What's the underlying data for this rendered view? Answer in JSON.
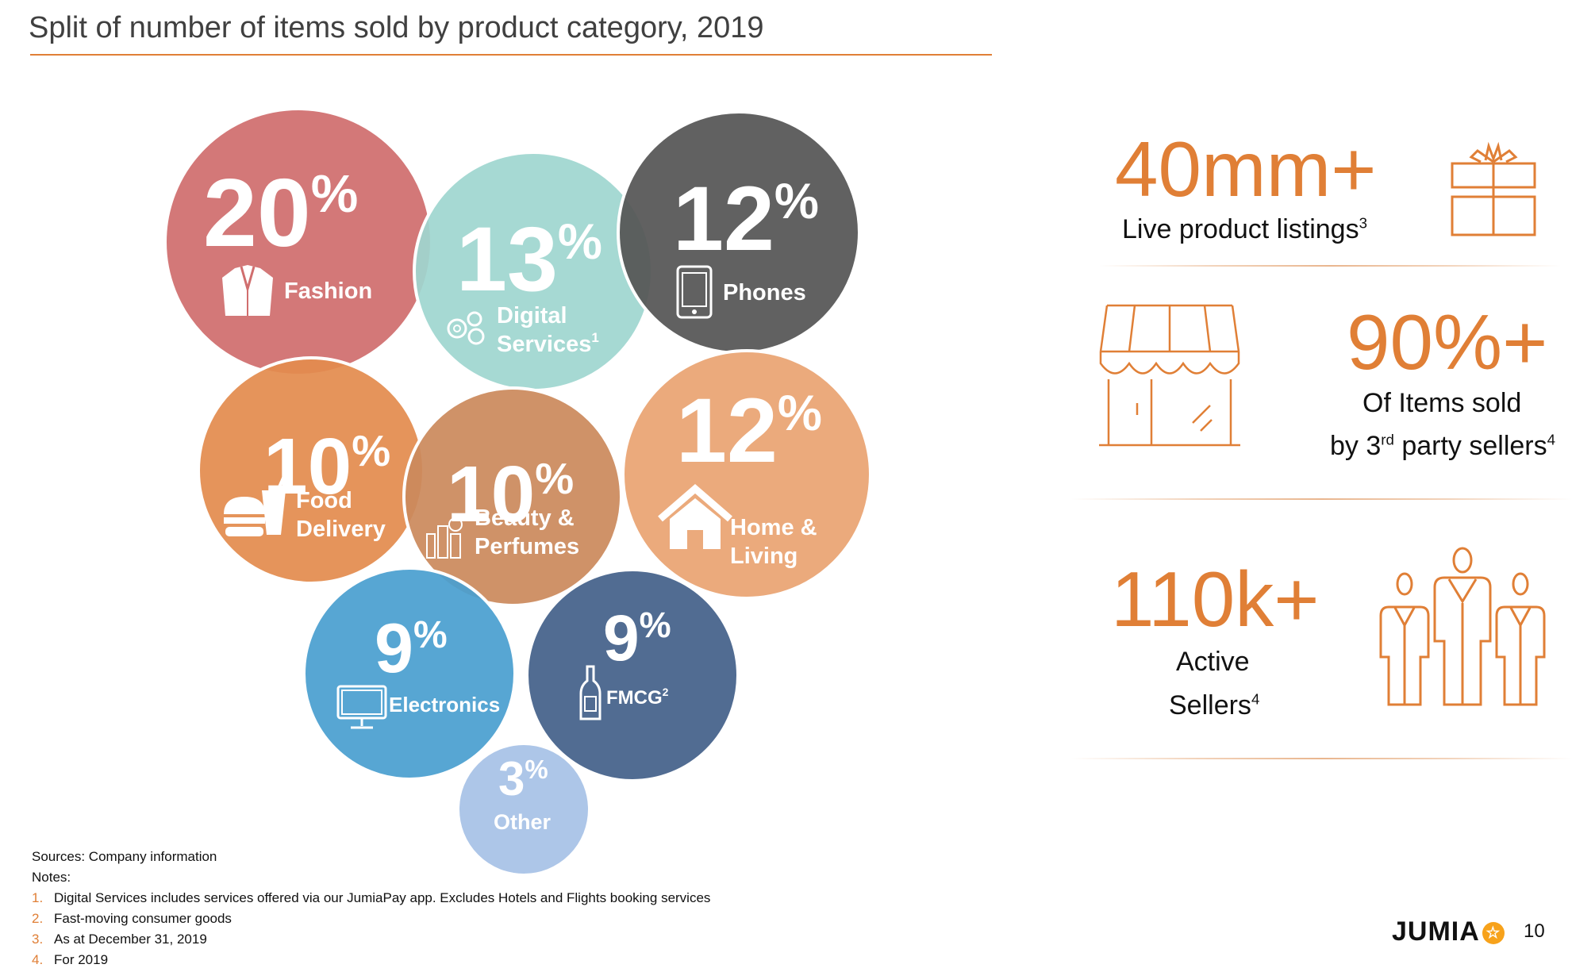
{
  "title": "Split of number of items sold by product category, 2019",
  "chart_data": {
    "type": "bubble",
    "title": "Split of number of items sold by product category, 2019",
    "unit": "%",
    "series": [
      {
        "name": "Fashion",
        "value": 20,
        "color": "#D06E6E",
        "icon": "jacket-icon"
      },
      {
        "name": "Digital Services",
        "sup": "1",
        "value": 13,
        "color": "#9FD6D0",
        "icon": "gears-icon"
      },
      {
        "name": "Phones",
        "value": 12,
        "color": "#555555",
        "icon": "phone-icon"
      },
      {
        "name": "Food Delivery",
        "value": 10,
        "color": "#E38C4F",
        "icon": "burger-drink-icon"
      },
      {
        "name": "Beauty & Perfumes",
        "value": 10,
        "color": "#CB8A5C",
        "icon": "cosmetics-icon"
      },
      {
        "name": "Home & Living",
        "value": 12,
        "color": "#E9A472",
        "icon": "house-icon"
      },
      {
        "name": "Electronics",
        "value": 9,
        "color": "#4A9FD0",
        "icon": "monitor-icon"
      },
      {
        "name": "FMCG",
        "sup": "2",
        "value": 9,
        "color": "#44618A",
        "icon": "bottle-icon"
      },
      {
        "name": "Other",
        "value": 3,
        "color": "#A7C2E6",
        "icon": ""
      }
    ]
  },
  "kpis": [
    {
      "value": "40mm+",
      "label": "Live product listings",
      "sup": "3",
      "icon": "gift-icon"
    },
    {
      "value": "90%+",
      "label_line1": "Of Items sold",
      "label_line2_pre": "by 3",
      "label_line2_sup": "rd",
      "label_line2_post": " party sellers",
      "sup": "4",
      "icon": "store-icon"
    },
    {
      "value": "110k+",
      "label_line1": "Active",
      "label_line2": "Sellers",
      "sup": "4",
      "icon": "people-icon"
    }
  ],
  "footnotes": {
    "sources": "Sources: Company information",
    "notes_label": "Notes:",
    "items": [
      {
        "num": "1.",
        "text": "Digital Services includes services offered via our JumiaPay app. Excludes Hotels and Flights booking services"
      },
      {
        "num": "2.",
        "text": "Fast-moving consumer goods"
      },
      {
        "num": "3.",
        "text": "As at December 31, 2019"
      },
      {
        "num": "4.",
        "text": "For 2019"
      }
    ]
  },
  "logo": "JUMIA",
  "page_number": "10",
  "colors": {
    "accent": "#E07F36",
    "text": "#111111"
  }
}
